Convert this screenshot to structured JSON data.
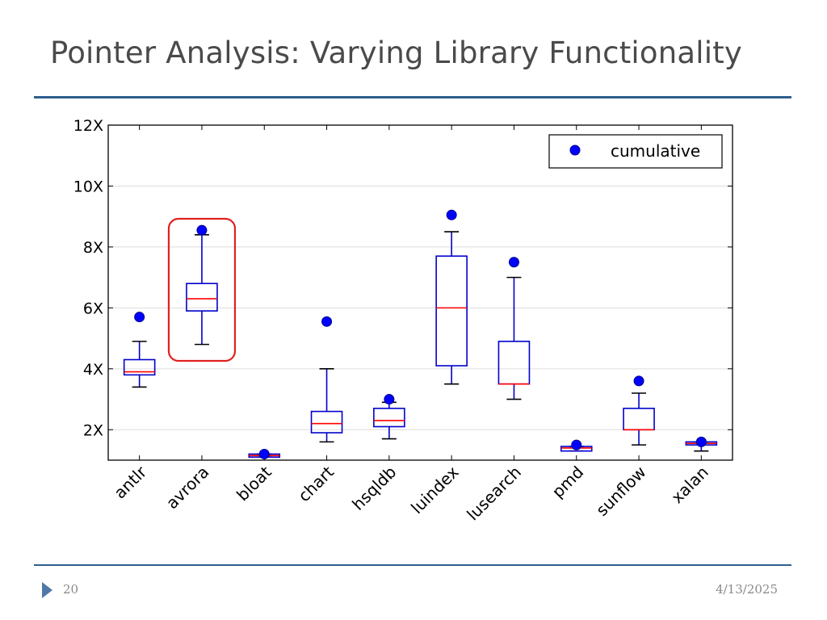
{
  "slide": {
    "title": "Pointer Analysis: Varying Library Functionality",
    "page_number": "20",
    "date": "4/13/2025",
    "accent_color": "#2e5f8e",
    "bullet_icon": "triangle-arrow-icon"
  },
  "chart_data": {
    "type": "box",
    "categories": [
      "antlr",
      "avrora",
      "bloat",
      "chart",
      "hsqldb",
      "luindex",
      "lusearch",
      "pmd",
      "sunflow",
      "xalan"
    ],
    "boxes": [
      {
        "whisker_low": 3.4,
        "q1": 3.8,
        "median": 3.9,
        "q3": 4.3,
        "whisker_high": 4.9
      },
      {
        "whisker_low": 4.8,
        "q1": 5.9,
        "median": 6.3,
        "q3": 6.8,
        "whisker_high": 8.4
      },
      {
        "whisker_low": 1.1,
        "q1": 1.1,
        "median": 1.15,
        "q3": 1.2,
        "whisker_high": 1.2
      },
      {
        "whisker_low": 1.6,
        "q1": 1.9,
        "median": 2.2,
        "q3": 2.6,
        "whisker_high": 4.0
      },
      {
        "whisker_low": 1.7,
        "q1": 2.1,
        "median": 2.3,
        "q3": 2.7,
        "whisker_high": 2.9
      },
      {
        "whisker_low": 3.5,
        "q1": 4.1,
        "median": 6.0,
        "q3": 7.7,
        "whisker_high": 8.5
      },
      {
        "whisker_low": 3.0,
        "q1": 3.5,
        "median": 3.5,
        "q3": 4.9,
        "whisker_high": 7.0
      },
      {
        "whisker_low": 1.3,
        "q1": 1.3,
        "median": 1.4,
        "q3": 1.45,
        "whisker_high": 1.45
      },
      {
        "whisker_low": 1.5,
        "q1": 2.0,
        "median": 2.0,
        "q3": 2.7,
        "whisker_high": 3.2
      },
      {
        "whisker_low": 1.3,
        "q1": 1.5,
        "median": 1.55,
        "q3": 1.6,
        "whisker_high": 1.6
      }
    ],
    "series": [
      {
        "name": "cumulative",
        "values": [
          5.7,
          8.55,
          1.2,
          5.55,
          3.0,
          9.05,
          7.5,
          1.5,
          3.6,
          1.6
        ]
      }
    ],
    "yticks": [
      2,
      4,
      6,
      8,
      10,
      12
    ],
    "ytick_labels": [
      "2X",
      "4X",
      "6X",
      "8X",
      "10X",
      "12X"
    ],
    "ylim": [
      1,
      12
    ],
    "grid": "horizontal",
    "legend_position": "top-right",
    "highlighted_category": "avrora",
    "colors": {
      "box": "#0000cc",
      "median": "#ff0000",
      "point": "#0000ff",
      "highlight": "#e02020",
      "grid": "#dddddd"
    }
  }
}
